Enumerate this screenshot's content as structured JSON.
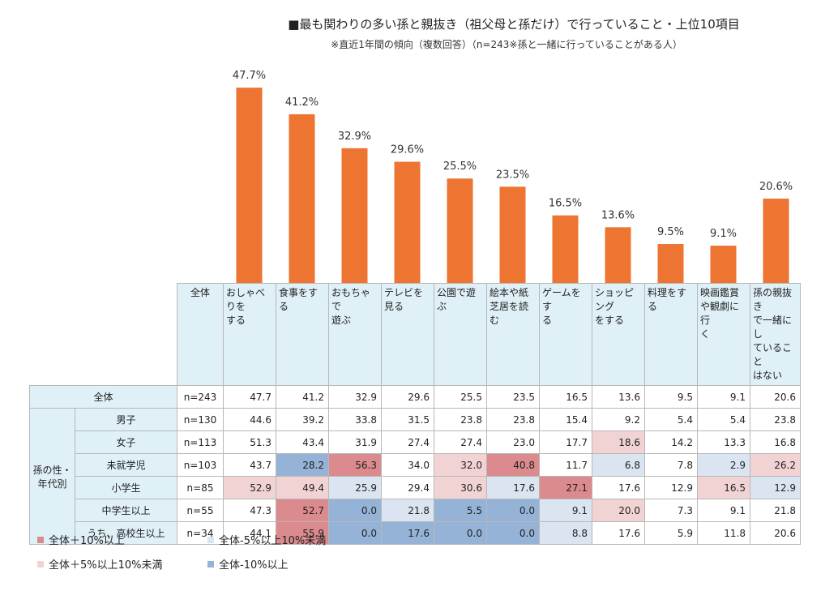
{
  "title": "■最も関わりの多い孫と親抜き（祖父母と孫だけ）で行っていること・上位10項目",
  "subtitle": "※直近1年間の傾向（複数回答）（n=243※孫と一緒に行っていることがある人）",
  "colors": {
    "bar": "#ed7431",
    "header_bg": "#dff0f6",
    "plus10": "#db8a8e",
    "plus5": "#f2d3d4",
    "minus5": "#dbe5f1",
    "minus10": "#95b3d7"
  },
  "chart_data": {
    "type": "bar",
    "title": "■最も関わりの多い孫と親抜き（祖父母と孫だけ）で行っていること・上位10項目",
    "subtitle": "※直近1年間の傾向（複数回答）（n=243※孫と一緒に行っていることがある人）",
    "categories": [
      "おしゃべりをする",
      "食事をする",
      "おもちゃで遊ぶ",
      "テレビを見る",
      "公園で遊ぶ",
      "絵本や紙芝居を読む",
      "ゲームをする",
      "ショッピングをする",
      "料理をする",
      "映画鑑賞や観劇に行く",
      "孫の親抜きで一緒にしていることはない"
    ],
    "values": [
      47.7,
      41.2,
      32.9,
      29.6,
      25.5,
      23.5,
      16.5,
      13.6,
      9.5,
      9.1,
      20.6
    ],
    "data_labels": [
      "47.7%",
      "41.2%",
      "32.9%",
      "29.6%",
      "25.5%",
      "23.5%",
      "16.5%",
      "13.6%",
      "9.5%",
      "9.1%",
      "20.6%"
    ],
    "unit": "%",
    "ylim": [
      0,
      50
    ],
    "grid": false
  },
  "table": {
    "header_all": "全体",
    "col_headers": [
      [
        "おしゃべりを",
        "する"
      ],
      [
        "食事をする"
      ],
      [
        "おもちゃで",
        "遊ぶ"
      ],
      [
        "テレビを見る"
      ],
      [
        "公園で遊ぶ"
      ],
      [
        "絵本や紙",
        "芝居を読む"
      ],
      [
        "ゲームをす",
        "る"
      ],
      [
        "ショッピング",
        "をする"
      ],
      [
        "料理をする"
      ],
      [
        "映画鑑賞",
        "や観劇に行",
        "く"
      ],
      [
        "孫の親抜き",
        "で一緒にし",
        "ていること",
        "はない"
      ]
    ],
    "group_label": [
      "孫の性・",
      "年代別"
    ],
    "rows": [
      {
        "label": "全体",
        "n": "n=243",
        "values": [
          "47.7",
          "41.2",
          "32.9",
          "29.6",
          "25.5",
          "23.5",
          "16.5",
          "13.6",
          "9.5",
          "9.1",
          "20.6"
        ],
        "shade": [
          "",
          "",
          "",
          "",
          "",
          "",
          "",
          "",
          "",
          "",
          ""
        ]
      },
      {
        "label": "男子",
        "n": "n=130",
        "values": [
          "44.6",
          "39.2",
          "33.8",
          "31.5",
          "23.8",
          "23.8",
          "15.4",
          "9.2",
          "5.4",
          "5.4",
          "23.8"
        ],
        "shade": [
          "",
          "",
          "",
          "",
          "",
          "",
          "",
          "",
          "",
          "",
          ""
        ]
      },
      {
        "label": "女子",
        "n": "n=113",
        "values": [
          "51.3",
          "43.4",
          "31.9",
          "27.4",
          "27.4",
          "23.0",
          "17.7",
          "18.6",
          "14.2",
          "13.3",
          "16.8"
        ],
        "shade": [
          "",
          "",
          "",
          "",
          "",
          "",
          "",
          "p5",
          "",
          "",
          ""
        ]
      },
      {
        "label": "未就学児",
        "n": "n=103",
        "values": [
          "43.7",
          "28.2",
          "56.3",
          "34.0",
          "32.0",
          "40.8",
          "11.7",
          "6.8",
          "7.8",
          "2.9",
          "26.2"
        ],
        "shade": [
          "",
          "m10",
          "p10",
          "",
          "p5",
          "p10",
          "",
          "m5",
          "",
          "m5",
          "p5"
        ]
      },
      {
        "label": "小学生",
        "n": "n=85",
        "values": [
          "52.9",
          "49.4",
          "25.9",
          "29.4",
          "30.6",
          "17.6",
          "27.1",
          "17.6",
          "12.9",
          "16.5",
          "12.9"
        ],
        "shade": [
          "p5",
          "p5",
          "m5",
          "",
          "p5",
          "m5",
          "p10",
          "",
          "",
          "p5",
          "m5"
        ]
      },
      {
        "label": "中学生以上",
        "n": "n=55",
        "values": [
          "47.3",
          "52.7",
          "0.0",
          "21.8",
          "5.5",
          "0.0",
          "9.1",
          "20.0",
          "7.3",
          "9.1",
          "21.8"
        ],
        "shade": [
          "",
          "p10",
          "m10",
          "m5",
          "m10",
          "m10",
          "m5",
          "p5",
          "",
          "",
          ""
        ]
      },
      {
        "label": "うち、高校生以上",
        "n": "n=34",
        "values": [
          "44.1",
          "55.9",
          "0.0",
          "17.6",
          "0.0",
          "0.0",
          "8.8",
          "17.6",
          "5.9",
          "11.8",
          "20.6"
        ],
        "shade": [
          "",
          "p10",
          "m10",
          "m10",
          "m10",
          "m10",
          "m5",
          "",
          "",
          "",
          ""
        ]
      }
    ]
  },
  "legend": [
    {
      "key": "p10",
      "label": "全体＋10%以上"
    },
    {
      "key": "m5",
      "label": "全体-5%以上10%未満"
    },
    {
      "key": "p5",
      "label": "全体＋5%以上10%未満"
    },
    {
      "key": "m10",
      "label": "全体-10%以上"
    }
  ]
}
